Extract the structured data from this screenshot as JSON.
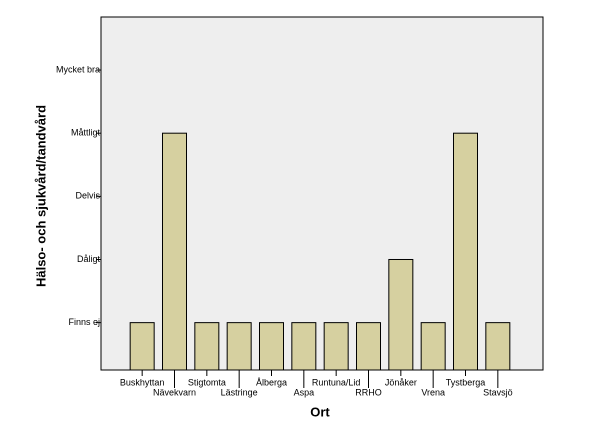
{
  "chart_data": {
    "type": "bar",
    "x_label": "Ort",
    "y_label": "Hälso- och sjukvård/tandvård",
    "categories": [
      "Buskhyttan",
      "Nävekvarn",
      "Stigtomta",
      "Lästringe",
      "Ålberga",
      "Aspa",
      "Runtuna/Lid",
      "RRHO",
      "Jönåker",
      "Vrena",
      "Tystberga",
      "Stavsjö"
    ],
    "values": [
      1,
      4,
      1,
      1,
      1,
      1,
      1,
      1,
      2,
      1,
      4,
      1
    ],
    "color": "#d6d0a0",
    "ylim": [
      0.25,
      5.84
    ],
    "yticks": [
      {
        "value": 1,
        "label": "Finns ej"
      },
      {
        "value": 2,
        "label": "Dåligt"
      },
      {
        "value": 3,
        "label": "Delvis"
      },
      {
        "value": 4,
        "label": "Måttligt"
      },
      {
        "value": 5,
        "label": "Mycket bra"
      }
    ]
  }
}
